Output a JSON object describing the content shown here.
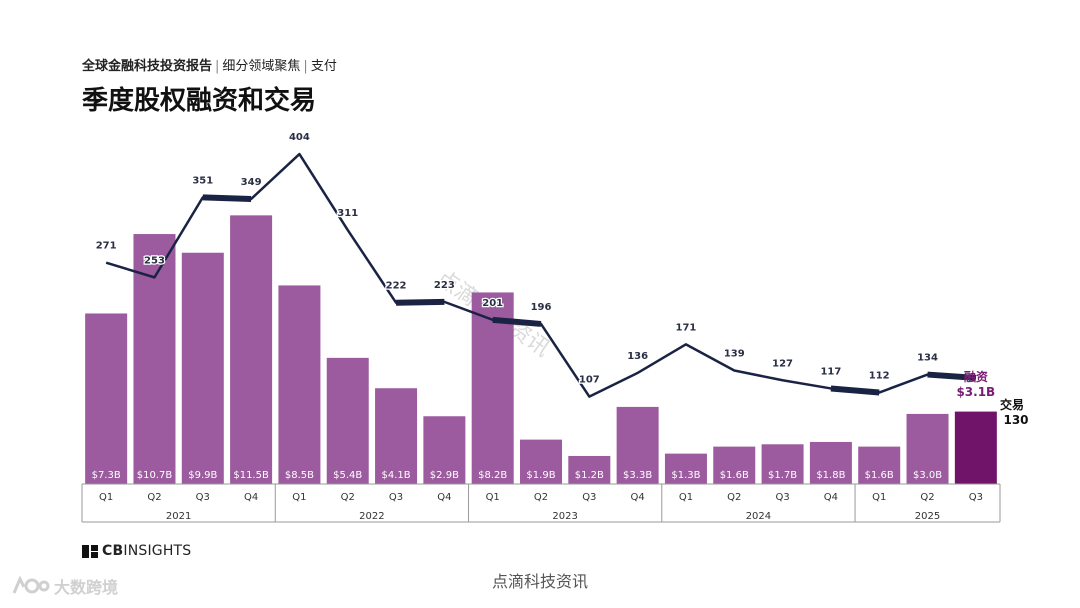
{
  "header": {
    "report_name": "全球金融科技投资报告",
    "separator": "|",
    "section": "细分领域聚焦",
    "topic": "支付",
    "title": "季度股权融资和交易"
  },
  "chart_data": {
    "type": "bar",
    "title": "季度股权融资和交易",
    "categories": [
      "Q1",
      "Q2",
      "Q3",
      "Q4",
      "Q1",
      "Q2",
      "Q3",
      "Q4",
      "Q1",
      "Q2",
      "Q3",
      "Q4",
      "Q1",
      "Q2",
      "Q3",
      "Q4",
      "Q1",
      "Q2",
      "Q3"
    ],
    "years": [
      {
        "label": "2021",
        "count": 4
      },
      {
        "label": "2022",
        "count": 4
      },
      {
        "label": "2023",
        "count": 4
      },
      {
        "label": "2024",
        "count": 4
      },
      {
        "label": "2025",
        "count": 3
      }
    ],
    "series": [
      {
        "name": "融资",
        "kind": "bar",
        "unit": "$B",
        "values": [
          7.3,
          10.7,
          9.9,
          11.5,
          8.5,
          5.4,
          4.1,
          2.9,
          8.2,
          1.9,
          1.2,
          3.3,
          1.3,
          1.6,
          1.7,
          1.8,
          1.6,
          3.0,
          3.1
        ],
        "labels": [
          "$7.3B",
          "$10.7B",
          "$9.9B",
          "$11.5B",
          "$8.5B",
          "$5.4B",
          "$4.1B",
          "$2.9B",
          "$8.2B",
          "$1.9B",
          "$1.2B",
          "$3.3B",
          "$1.3B",
          "$1.6B",
          "$1.7B",
          "$1.8B",
          "$1.6B",
          "$3.0B",
          ""
        ]
      },
      {
        "name": "交易",
        "kind": "line",
        "values": [
          271,
          253,
          351,
          349,
          404,
          311,
          222,
          223,
          201,
          196,
          107,
          136,
          171,
          139,
          127,
          117,
          112,
          134,
          130
        ]
      }
    ],
    "callouts": {
      "funding_label": "融资",
      "funding_value": "$3.1B",
      "deals_label": "交易",
      "deals_value": "130"
    },
    "colors": {
      "bar": "#9b5b9e",
      "bar_highlight": "#6f1469",
      "line": "#1b2345",
      "axis": "#999999",
      "callout": "#7a1c75"
    },
    "ylim_funding": [
      0,
      12.5
    ],
    "ylim_deals": [
      0,
      480
    ]
  },
  "brand": {
    "logo_text_bold": "CB",
    "logo_text": "INSIGHTS",
    "watermark_center": "点滴科技资讯",
    "watermark_diagonal": "点滴科技资讯",
    "footer_brand": "大数跨境"
  }
}
